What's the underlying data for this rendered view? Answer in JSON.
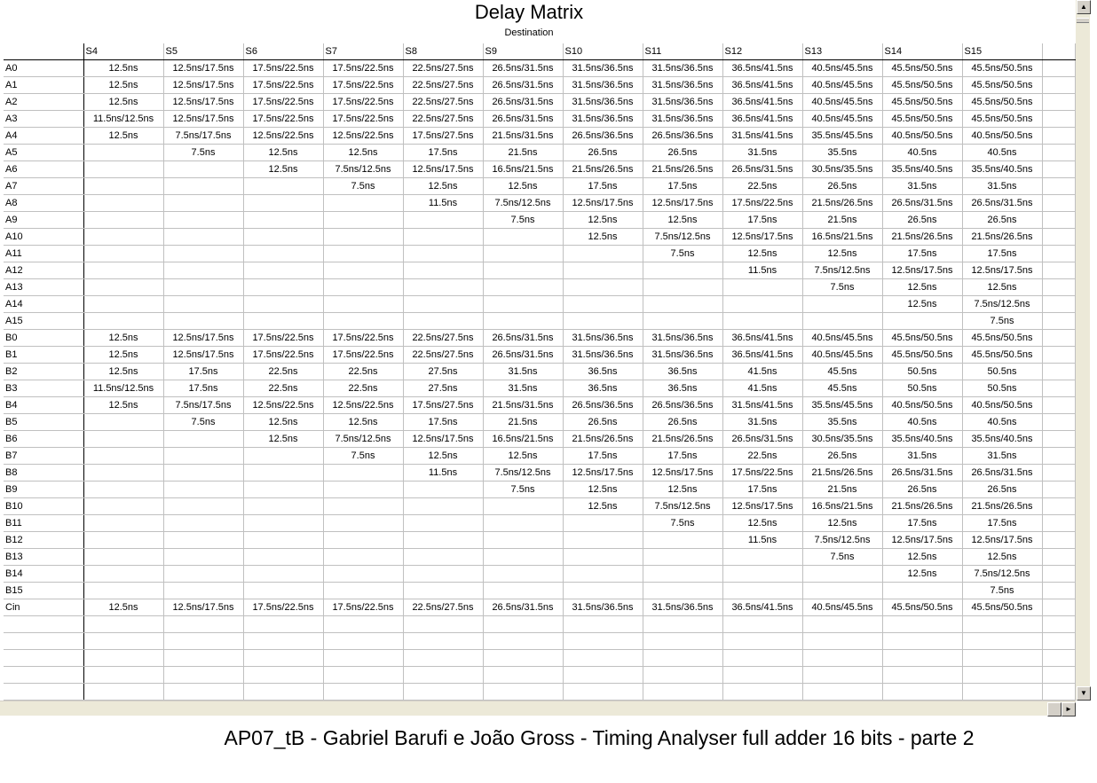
{
  "window": {
    "title": "Delay Matrix",
    "subtitle": "Destination"
  },
  "columns": [
    "S4",
    "S5",
    "S6",
    "S7",
    "S8",
    "S9",
    "S10",
    "S11",
    "S12",
    "S13",
    "S14",
    "S15"
  ],
  "rows": [
    {
      "label": "A0",
      "cells": [
        "12.5ns",
        "12.5ns/17.5ns",
        "17.5ns/22.5ns",
        "17.5ns/22.5ns",
        "22.5ns/27.5ns",
        "26.5ns/31.5ns",
        "31.5ns/36.5ns",
        "31.5ns/36.5ns",
        "36.5ns/41.5ns",
        "40.5ns/45.5ns",
        "45.5ns/50.5ns",
        "45.5ns/50.5ns"
      ]
    },
    {
      "label": "A1",
      "cells": [
        "12.5ns",
        "12.5ns/17.5ns",
        "17.5ns/22.5ns",
        "17.5ns/22.5ns",
        "22.5ns/27.5ns",
        "26.5ns/31.5ns",
        "31.5ns/36.5ns",
        "31.5ns/36.5ns",
        "36.5ns/41.5ns",
        "40.5ns/45.5ns",
        "45.5ns/50.5ns",
        "45.5ns/50.5ns"
      ]
    },
    {
      "label": "A2",
      "cells": [
        "12.5ns",
        "12.5ns/17.5ns",
        "17.5ns/22.5ns",
        "17.5ns/22.5ns",
        "22.5ns/27.5ns",
        "26.5ns/31.5ns",
        "31.5ns/36.5ns",
        "31.5ns/36.5ns",
        "36.5ns/41.5ns",
        "40.5ns/45.5ns",
        "45.5ns/50.5ns",
        "45.5ns/50.5ns"
      ]
    },
    {
      "label": "A3",
      "cells": [
        "11.5ns/12.5ns",
        "12.5ns/17.5ns",
        "17.5ns/22.5ns",
        "17.5ns/22.5ns",
        "22.5ns/27.5ns",
        "26.5ns/31.5ns",
        "31.5ns/36.5ns",
        "31.5ns/36.5ns",
        "36.5ns/41.5ns",
        "40.5ns/45.5ns",
        "45.5ns/50.5ns",
        "45.5ns/50.5ns"
      ]
    },
    {
      "label": "A4",
      "cells": [
        "12.5ns",
        "7.5ns/17.5ns",
        "12.5ns/22.5ns",
        "12.5ns/22.5ns",
        "17.5ns/27.5ns",
        "21.5ns/31.5ns",
        "26.5ns/36.5ns",
        "26.5ns/36.5ns",
        "31.5ns/41.5ns",
        "35.5ns/45.5ns",
        "40.5ns/50.5ns",
        "40.5ns/50.5ns"
      ]
    },
    {
      "label": "A5",
      "cells": [
        "",
        "7.5ns",
        "12.5ns",
        "12.5ns",
        "17.5ns",
        "21.5ns",
        "26.5ns",
        "26.5ns",
        "31.5ns",
        "35.5ns",
        "40.5ns",
        "40.5ns"
      ]
    },
    {
      "label": "A6",
      "cells": [
        "",
        "",
        "12.5ns",
        "7.5ns/12.5ns",
        "12.5ns/17.5ns",
        "16.5ns/21.5ns",
        "21.5ns/26.5ns",
        "21.5ns/26.5ns",
        "26.5ns/31.5ns",
        "30.5ns/35.5ns",
        "35.5ns/40.5ns",
        "35.5ns/40.5ns"
      ]
    },
    {
      "label": "A7",
      "cells": [
        "",
        "",
        "",
        "7.5ns",
        "12.5ns",
        "12.5ns",
        "17.5ns",
        "17.5ns",
        "22.5ns",
        "26.5ns",
        "31.5ns",
        "31.5ns"
      ]
    },
    {
      "label": "A8",
      "cells": [
        "",
        "",
        "",
        "",
        "11.5ns",
        "7.5ns/12.5ns",
        "12.5ns/17.5ns",
        "12.5ns/17.5ns",
        "17.5ns/22.5ns",
        "21.5ns/26.5ns",
        "26.5ns/31.5ns",
        "26.5ns/31.5ns"
      ]
    },
    {
      "label": "A9",
      "cells": [
        "",
        "",
        "",
        "",
        "",
        "7.5ns",
        "12.5ns",
        "12.5ns",
        "17.5ns",
        "21.5ns",
        "26.5ns",
        "26.5ns"
      ]
    },
    {
      "label": "A10",
      "cells": [
        "",
        "",
        "",
        "",
        "",
        "",
        "12.5ns",
        "7.5ns/12.5ns",
        "12.5ns/17.5ns",
        "16.5ns/21.5ns",
        "21.5ns/26.5ns",
        "21.5ns/26.5ns"
      ]
    },
    {
      "label": "A11",
      "cells": [
        "",
        "",
        "",
        "",
        "",
        "",
        "",
        "7.5ns",
        "12.5ns",
        "12.5ns",
        "17.5ns",
        "17.5ns"
      ]
    },
    {
      "label": "A12",
      "cells": [
        "",
        "",
        "",
        "",
        "",
        "",
        "",
        "",
        "11.5ns",
        "7.5ns/12.5ns",
        "12.5ns/17.5ns",
        "12.5ns/17.5ns"
      ]
    },
    {
      "label": "A13",
      "cells": [
        "",
        "",
        "",
        "",
        "",
        "",
        "",
        "",
        "",
        "7.5ns",
        "12.5ns",
        "12.5ns"
      ]
    },
    {
      "label": "A14",
      "cells": [
        "",
        "",
        "",
        "",
        "",
        "",
        "",
        "",
        "",
        "",
        "12.5ns",
        "7.5ns/12.5ns"
      ]
    },
    {
      "label": "A15",
      "cells": [
        "",
        "",
        "",
        "",
        "",
        "",
        "",
        "",
        "",
        "",
        "",
        "7.5ns"
      ]
    },
    {
      "label": "B0",
      "cells": [
        "12.5ns",
        "12.5ns/17.5ns",
        "17.5ns/22.5ns",
        "17.5ns/22.5ns",
        "22.5ns/27.5ns",
        "26.5ns/31.5ns",
        "31.5ns/36.5ns",
        "31.5ns/36.5ns",
        "36.5ns/41.5ns",
        "40.5ns/45.5ns",
        "45.5ns/50.5ns",
        "45.5ns/50.5ns"
      ]
    },
    {
      "label": "B1",
      "cells": [
        "12.5ns",
        "12.5ns/17.5ns",
        "17.5ns/22.5ns",
        "17.5ns/22.5ns",
        "22.5ns/27.5ns",
        "26.5ns/31.5ns",
        "31.5ns/36.5ns",
        "31.5ns/36.5ns",
        "36.5ns/41.5ns",
        "40.5ns/45.5ns",
        "45.5ns/50.5ns",
        "45.5ns/50.5ns"
      ]
    },
    {
      "label": "B2",
      "cells": [
        "12.5ns",
        "17.5ns",
        "22.5ns",
        "22.5ns",
        "27.5ns",
        "31.5ns",
        "36.5ns",
        "36.5ns",
        "41.5ns",
        "45.5ns",
        "50.5ns",
        "50.5ns"
      ]
    },
    {
      "label": "B3",
      "cells": [
        "11.5ns/12.5ns",
        "17.5ns",
        "22.5ns",
        "22.5ns",
        "27.5ns",
        "31.5ns",
        "36.5ns",
        "36.5ns",
        "41.5ns",
        "45.5ns",
        "50.5ns",
        "50.5ns"
      ]
    },
    {
      "label": "B4",
      "cells": [
        "12.5ns",
        "7.5ns/17.5ns",
        "12.5ns/22.5ns",
        "12.5ns/22.5ns",
        "17.5ns/27.5ns",
        "21.5ns/31.5ns",
        "26.5ns/36.5ns",
        "26.5ns/36.5ns",
        "31.5ns/41.5ns",
        "35.5ns/45.5ns",
        "40.5ns/50.5ns",
        "40.5ns/50.5ns"
      ]
    },
    {
      "label": "B5",
      "cells": [
        "",
        "7.5ns",
        "12.5ns",
        "12.5ns",
        "17.5ns",
        "21.5ns",
        "26.5ns",
        "26.5ns",
        "31.5ns",
        "35.5ns",
        "40.5ns",
        "40.5ns"
      ]
    },
    {
      "label": "B6",
      "cells": [
        "",
        "",
        "12.5ns",
        "7.5ns/12.5ns",
        "12.5ns/17.5ns",
        "16.5ns/21.5ns",
        "21.5ns/26.5ns",
        "21.5ns/26.5ns",
        "26.5ns/31.5ns",
        "30.5ns/35.5ns",
        "35.5ns/40.5ns",
        "35.5ns/40.5ns"
      ]
    },
    {
      "label": "B7",
      "cells": [
        "",
        "",
        "",
        "7.5ns",
        "12.5ns",
        "12.5ns",
        "17.5ns",
        "17.5ns",
        "22.5ns",
        "26.5ns",
        "31.5ns",
        "31.5ns"
      ]
    },
    {
      "label": "B8",
      "cells": [
        "",
        "",
        "",
        "",
        "11.5ns",
        "7.5ns/12.5ns",
        "12.5ns/17.5ns",
        "12.5ns/17.5ns",
        "17.5ns/22.5ns",
        "21.5ns/26.5ns",
        "26.5ns/31.5ns",
        "26.5ns/31.5ns"
      ]
    },
    {
      "label": "B9",
      "cells": [
        "",
        "",
        "",
        "",
        "",
        "7.5ns",
        "12.5ns",
        "12.5ns",
        "17.5ns",
        "21.5ns",
        "26.5ns",
        "26.5ns"
      ]
    },
    {
      "label": "B10",
      "cells": [
        "",
        "",
        "",
        "",
        "",
        "",
        "12.5ns",
        "7.5ns/12.5ns",
        "12.5ns/17.5ns",
        "16.5ns/21.5ns",
        "21.5ns/26.5ns",
        "21.5ns/26.5ns"
      ]
    },
    {
      "label": "B11",
      "cells": [
        "",
        "",
        "",
        "",
        "",
        "",
        "",
        "7.5ns",
        "12.5ns",
        "12.5ns",
        "17.5ns",
        "17.5ns"
      ]
    },
    {
      "label": "B12",
      "cells": [
        "",
        "",
        "",
        "",
        "",
        "",
        "",
        "",
        "11.5ns",
        "7.5ns/12.5ns",
        "12.5ns/17.5ns",
        "12.5ns/17.5ns"
      ]
    },
    {
      "label": "B13",
      "cells": [
        "",
        "",
        "",
        "",
        "",
        "",
        "",
        "",
        "",
        "7.5ns",
        "12.5ns",
        "12.5ns"
      ]
    },
    {
      "label": "B14",
      "cells": [
        "",
        "",
        "",
        "",
        "",
        "",
        "",
        "",
        "",
        "",
        "12.5ns",
        "7.5ns/12.5ns"
      ]
    },
    {
      "label": "B15",
      "cells": [
        "",
        "",
        "",
        "",
        "",
        "",
        "",
        "",
        "",
        "",
        "",
        "7.5ns"
      ]
    },
    {
      "label": "Cin",
      "cells": [
        "12.5ns",
        "12.5ns/17.5ns",
        "17.5ns/22.5ns",
        "17.5ns/22.5ns",
        "22.5ns/27.5ns",
        "26.5ns/31.5ns",
        "31.5ns/36.5ns",
        "31.5ns/36.5ns",
        "36.5ns/41.5ns",
        "40.5ns/45.5ns",
        "45.5ns/50.5ns",
        "45.5ns/50.5ns"
      ]
    }
  ],
  "scrollbars": {
    "up_icon": "arrow-up-icon",
    "down_icon": "arrow-down-icon",
    "left_icon": "arrow-left-icon",
    "right_icon": "arrow-right-icon"
  },
  "caption": "AP07_tB - Gabriel Barufi e João Gross - Timing Analyser full adder 16 bits - parte 2",
  "colors": {
    "grid_line": "#c0c0c0",
    "header_line": "#000000",
    "scrollbar": "#ece9d8"
  }
}
